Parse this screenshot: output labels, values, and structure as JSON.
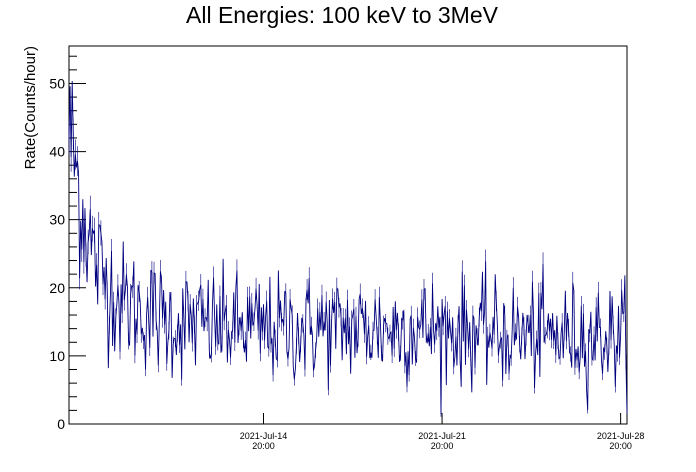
{
  "chart_data": {
    "type": "line",
    "title": "All Energies:  100 keV to 3MeV",
    "xlabel": "",
    "ylabel": "Rate(Counts/hour)",
    "ylim": [
      0,
      55.5
    ],
    "yticks": [
      0,
      10,
      20,
      30,
      40,
      50
    ],
    "ytick_labels": [
      "0",
      "10",
      "20",
      "30",
      "40",
      "50"
    ],
    "xlim": [
      "2021-Jul-07 05:00",
      "2021-Jul-29 02:00"
    ],
    "xticks": [
      {
        "date": "2021-Jul-14",
        "time": "20:00"
      },
      {
        "date": "2021-Jul-21",
        "time": "20:00"
      },
      {
        "date": "2021-Jul-28",
        "time": "20:00"
      }
    ],
    "grid": false,
    "legend": "none",
    "line_color": "#00007f",
    "series": [
      {
        "name": "",
        "hours": [
          0,
          6,
          12,
          24,
          48,
          96,
          168,
          240,
          336,
          432,
          525
        ],
        "values": [
          44,
          38,
          32,
          24,
          18,
          15,
          14,
          14,
          14,
          13,
          13
        ]
      }
    ]
  }
}
